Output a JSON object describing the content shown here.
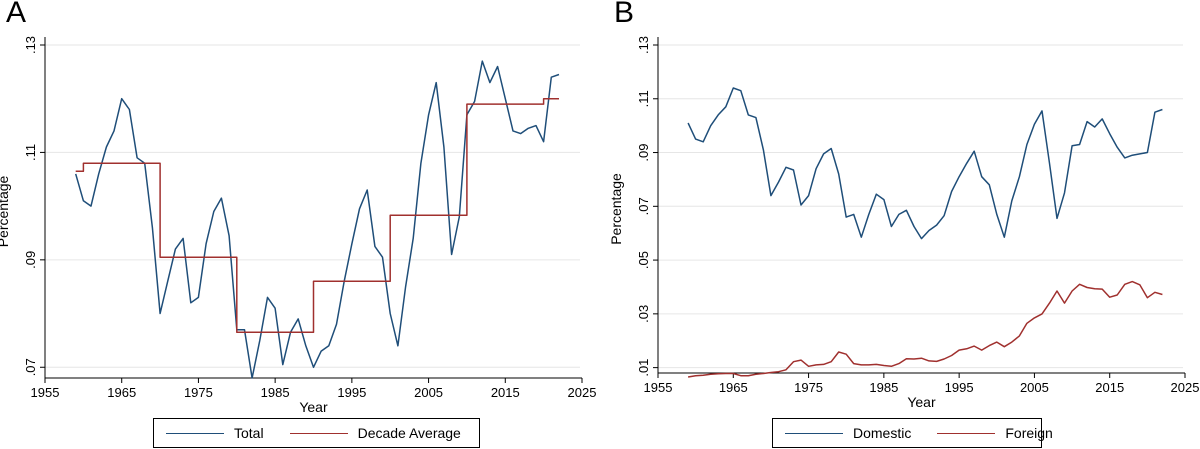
{
  "chart_data": [
    {
      "panel_label": "A",
      "type": "line",
      "xlabel": "Year",
      "ylabel": "Percentage",
      "xlim": [
        1955,
        2025
      ],
      "ylim": [
        0.068,
        0.13
      ],
      "xticks": [
        1955,
        1965,
        1975,
        1985,
        1995,
        2005,
        2015,
        2025
      ],
      "xtick_labels": [
        "1955",
        "1965",
        "1975",
        "1985",
        "1995",
        "2005",
        "2015",
        "2025"
      ],
      "yticks": [
        0.07,
        0.09,
        0.11,
        0.13
      ],
      "ytick_labels": [
        ".07",
        ".09",
        ".11",
        ".13"
      ],
      "grid": "horizontal",
      "legend_position": "bottom",
      "series": [
        {
          "name": "Total",
          "color": "#1f4e79",
          "step": false,
          "x": [
            1959,
            1960,
            1961,
            1962,
            1963,
            1964,
            1965,
            1966,
            1967,
            1968,
            1969,
            1970,
            1971,
            1972,
            1973,
            1974,
            1975,
            1976,
            1977,
            1978,
            1979,
            1980,
            1981,
            1982,
            1983,
            1984,
            1985,
            1986,
            1987,
            1988,
            1989,
            1990,
            1991,
            1992,
            1993,
            1994,
            1995,
            1996,
            1997,
            1998,
            1999,
            2000,
            2001,
            2002,
            2003,
            2004,
            2005,
            2006,
            2007,
            2008,
            2009,
            2010,
            2011,
            2012,
            2013,
            2014,
            2015,
            2016,
            2017,
            2018,
            2019,
            2020,
            2021,
            2022
          ],
          "y": [
            0.106,
            0.101,
            0.1,
            0.106,
            0.111,
            0.114,
            0.12,
            0.118,
            0.109,
            0.108,
            0.096,
            0.08,
            0.086,
            0.092,
            0.094,
            0.082,
            0.083,
            0.093,
            0.099,
            0.1015,
            0.0945,
            0.077,
            0.077,
            0.068,
            0.075,
            0.083,
            0.081,
            0.0705,
            0.0765,
            0.079,
            0.074,
            0.07,
            0.073,
            0.074,
            0.078,
            0.086,
            0.093,
            0.0995,
            0.103,
            0.0925,
            0.0905,
            0.08,
            0.074,
            0.085,
            0.094,
            0.108,
            0.117,
            0.123,
            0.111,
            0.091,
            0.098,
            0.117,
            0.1195,
            0.127,
            0.123,
            0.126,
            0.12,
            0.114,
            0.1135,
            0.1145,
            0.115,
            0.112,
            0.124,
            0.1245
          ]
        },
        {
          "name": "Decade Average",
          "color": "#a0302e",
          "step": true,
          "x": [
            1959,
            1960,
            1961,
            1962,
            1963,
            1964,
            1965,
            1966,
            1967,
            1968,
            1969,
            1970,
            1971,
            1972,
            1973,
            1974,
            1975,
            1976,
            1977,
            1978,
            1979,
            1980,
            1981,
            1982,
            1983,
            1984,
            1985,
            1986,
            1987,
            1988,
            1989,
            1990,
            1991,
            1992,
            1993,
            1994,
            1995,
            1996,
            1997,
            1998,
            1999,
            2000,
            2001,
            2002,
            2003,
            2004,
            2005,
            2006,
            2007,
            2008,
            2009,
            2010,
            2011,
            2012,
            2013,
            2014,
            2015,
            2016,
            2017,
            2018,
            2019,
            2020,
            2021,
            2022
          ],
          "y": [
            0.1065,
            0.108,
            0.108,
            0.108,
            0.108,
            0.108,
            0.108,
            0.108,
            0.108,
            0.108,
            0.108,
            0.0905,
            0.0905,
            0.0905,
            0.0905,
            0.0905,
            0.0905,
            0.0905,
            0.0905,
            0.0905,
            0.0905,
            0.0765,
            0.0765,
            0.0765,
            0.0765,
            0.0765,
            0.0765,
            0.0765,
            0.0765,
            0.0765,
            0.0765,
            0.086,
            0.086,
            0.086,
            0.086,
            0.086,
            0.086,
            0.086,
            0.086,
            0.086,
            0.086,
            0.0983,
            0.0983,
            0.0983,
            0.0983,
            0.0983,
            0.0983,
            0.0983,
            0.0983,
            0.0983,
            0.0983,
            0.119,
            0.119,
            0.119,
            0.119,
            0.119,
            0.119,
            0.119,
            0.119,
            0.119,
            0.119,
            0.12,
            0.12,
            0.12
          ]
        }
      ]
    },
    {
      "panel_label": "B",
      "type": "line",
      "xlabel": "Year",
      "ylabel": "Percentage",
      "xlim": [
        1955,
        2025
      ],
      "ylim": [
        0.008,
        0.13
      ],
      "xticks": [
        1955,
        1965,
        1975,
        1985,
        1995,
        2005,
        2015,
        2025
      ],
      "xtick_labels": [
        "1955",
        "1965",
        "1975",
        "1985",
        "1995",
        "2005",
        "2015",
        "2025"
      ],
      "yticks": [
        0.01,
        0.03,
        0.05,
        0.07,
        0.09,
        0.11,
        0.13
      ],
      "ytick_labels": [
        ".01",
        ".03",
        ".05",
        ".07",
        ".09",
        ".11",
        ".13"
      ],
      "grid": "horizontal",
      "legend_position": "bottom",
      "series": [
        {
          "name": "Domestic",
          "color": "#1f4e79",
          "step": false,
          "x": [
            1959,
            1960,
            1961,
            1962,
            1963,
            1964,
            1965,
            1966,
            1967,
            1968,
            1969,
            1970,
            1971,
            1972,
            1973,
            1974,
            1975,
            1976,
            1977,
            1978,
            1979,
            1980,
            1981,
            1982,
            1983,
            1984,
            1985,
            1986,
            1987,
            1988,
            1989,
            1990,
            1991,
            1992,
            1993,
            1994,
            1995,
            1996,
            1997,
            1998,
            1999,
            2000,
            2001,
            2002,
            2003,
            2004,
            2005,
            2006,
            2007,
            2008,
            2009,
            2010,
            2011,
            2012,
            2013,
            2014,
            2015,
            2016,
            2017,
            2018,
            2019,
            2020,
            2021,
            2022
          ],
          "y": [
            0.101,
            0.095,
            0.094,
            0.1,
            0.104,
            0.107,
            0.114,
            0.113,
            0.104,
            0.103,
            0.091,
            0.074,
            0.079,
            0.0845,
            0.0835,
            0.0705,
            0.074,
            0.084,
            0.0895,
            0.0915,
            0.082,
            0.066,
            0.067,
            0.0585,
            0.067,
            0.0745,
            0.0725,
            0.0625,
            0.067,
            0.0685,
            0.0625,
            0.058,
            0.061,
            0.063,
            0.0665,
            0.0755,
            0.081,
            0.086,
            0.0905,
            0.081,
            0.078,
            0.067,
            0.0585,
            0.072,
            0.081,
            0.093,
            0.1005,
            0.1055,
            0.086,
            0.0655,
            0.075,
            0.0925,
            0.093,
            0.1015,
            0.0995,
            0.1025,
            0.097,
            0.092,
            0.088,
            0.089,
            0.0895,
            0.09,
            0.105,
            0.106
          ]
        },
        {
          "name": "Foreign",
          "color": "#a0302e",
          "step": false,
          "x": [
            1959,
            1960,
            1961,
            1962,
            1963,
            1964,
            1965,
            1966,
            1967,
            1968,
            1969,
            1970,
            1971,
            1972,
            1973,
            1974,
            1975,
            1976,
            1977,
            1978,
            1979,
            1980,
            1981,
            1982,
            1983,
            1984,
            1985,
            1986,
            1987,
            1988,
            1989,
            1990,
            1991,
            1992,
            1993,
            1994,
            1995,
            1996,
            1997,
            1998,
            1999,
            2000,
            2001,
            2002,
            2003,
            2004,
            2005,
            2006,
            2007,
            2008,
            2009,
            2010,
            2011,
            2012,
            2013,
            2014,
            2015,
            2016,
            2017,
            2018,
            2019,
            2020,
            2021,
            2022
          ],
          "y": [
            0.0065,
            0.007,
            0.0072,
            0.0075,
            0.0077,
            0.0078,
            0.0078,
            0.007,
            0.007,
            0.0075,
            0.0078,
            0.0082,
            0.0085,
            0.0092,
            0.0122,
            0.0128,
            0.0105,
            0.011,
            0.0112,
            0.0122,
            0.0158,
            0.015,
            0.0115,
            0.011,
            0.011,
            0.0112,
            0.0108,
            0.0105,
            0.0115,
            0.0133,
            0.0132,
            0.0135,
            0.0125,
            0.0123,
            0.0132,
            0.0145,
            0.0165,
            0.017,
            0.018,
            0.0165,
            0.0182,
            0.0195,
            0.0178,
            0.0195,
            0.0218,
            0.0265,
            0.0285,
            0.03,
            0.034,
            0.0385,
            0.034,
            0.0385,
            0.041,
            0.0398,
            0.0393,
            0.0392,
            0.0362,
            0.037,
            0.041,
            0.042,
            0.0408,
            0.036,
            0.038,
            0.0372
          ]
        }
      ]
    }
  ]
}
